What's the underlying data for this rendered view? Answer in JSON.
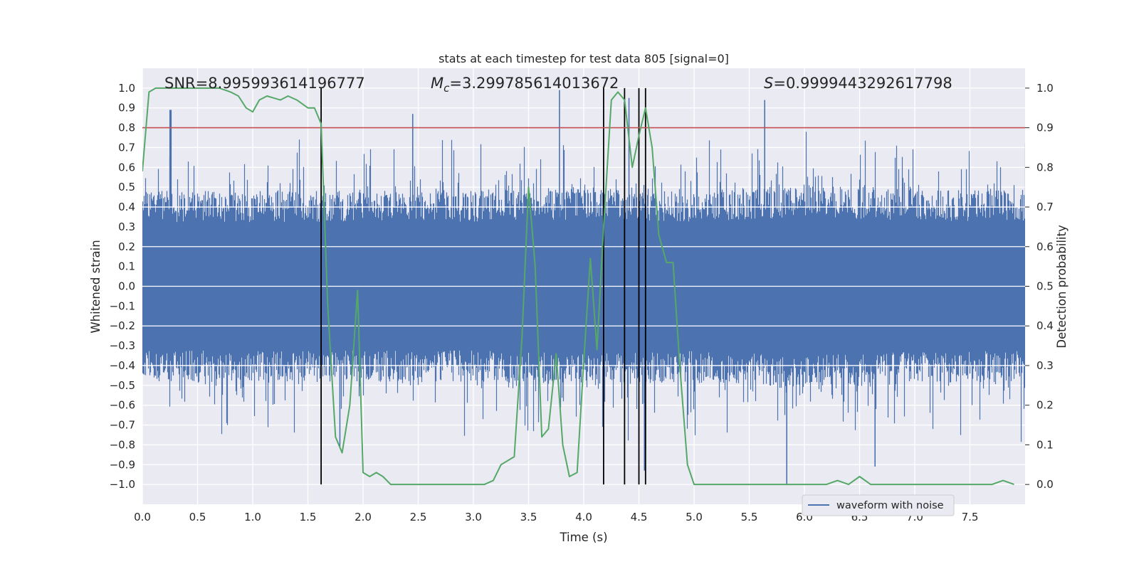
{
  "chart_data": {
    "type": "line",
    "title": "stats at each timestep for test data 805 [signal=0]",
    "xlabel": "Time (s)",
    "ylabel": "Whitened strain",
    "y2label": "Detection probability",
    "xlim": [
      0,
      8
    ],
    "ylim": [
      -1.1,
      1.1
    ],
    "y2lim": [
      -0.05,
      1.05
    ],
    "xticks": [
      "0.0",
      "0.5",
      "1.0",
      "1.5",
      "2.0",
      "2.5",
      "3.0",
      "3.5",
      "4.0",
      "4.5",
      "5.0",
      "5.5",
      "6.0",
      "6.5",
      "7.0",
      "7.5"
    ],
    "yticks": [
      "1.0",
      "0.9",
      "0.8",
      "0.7",
      "0.6",
      "0.5",
      "0.4",
      "0.3",
      "0.2",
      "0.1",
      "0.0",
      "-0.1",
      "-0.2",
      "-0.3",
      "-0.4",
      "-0.5",
      "-0.6",
      "-0.7",
      "-0.8",
      "-0.9",
      "-1.0"
    ],
    "y2ticks": [
      "1.0",
      "0.9",
      "0.8",
      "0.7",
      "0.6",
      "0.5",
      "0.4",
      "0.3",
      "0.2",
      "0.1",
      "0.0"
    ],
    "annotations": {
      "snr": "SNR=8.995993614196777",
      "mc_symbol": "M",
      "mc_sub": "c",
      "mc_value": "=3.299785614013672",
      "s_symbol": "S",
      "s_value": "=0.9999443292617798"
    },
    "legend": {
      "label": "waveform with noise",
      "placement": "lower-right"
    },
    "grid": true,
    "threshold": {
      "y2": 0.9,
      "color": "#c44e52"
    },
    "event_lines_x": [
      1.62,
      4.18,
      4.37,
      4.5,
      4.56
    ],
    "colors": {
      "waveform": "#4c72b0",
      "probability": "#55a868",
      "threshold": "#c44e52",
      "event": "#000000",
      "axes_bg": "#eaeaf2"
    },
    "series": [
      {
        "name": "waveform with noise",
        "kind": "noise",
        "color": "#4c72b0",
        "envelope_x": [
          0.0,
          1.0,
          2.0,
          3.0,
          4.0,
          5.0,
          6.0,
          7.0,
          8.0
        ],
        "envelope_upper": [
          0.45,
          0.45,
          0.45,
          0.45,
          0.47,
          0.45,
          0.48,
          0.46,
          0.45
        ],
        "envelope_lower": [
          -0.45,
          -0.45,
          -0.45,
          -0.45,
          -0.47,
          -0.45,
          -0.48,
          -0.46,
          -0.45
        ],
        "peaks_x": [
          0.25,
          0.26,
          1.79,
          2.45,
          3.78,
          4.41,
          4.55,
          4.56,
          5.64,
          5.84,
          6.64
        ],
        "peaks_y": [
          0.89,
          0.89,
          -0.81,
          0.87,
          0.99,
          0.95,
          -0.93,
          -0.83,
          0.94,
          -1.0,
          -0.91
        ]
      },
      {
        "name": "",
        "kind": "probability",
        "axis": "y2",
        "color": "#55a868",
        "x": [
          0.0,
          0.06,
          0.12,
          0.2,
          0.3,
          0.4,
          0.5,
          0.6,
          0.7,
          0.8,
          0.87,
          0.94,
          1.0,
          1.06,
          1.13,
          1.25,
          1.32,
          1.4,
          1.5,
          1.56,
          1.62,
          1.68,
          1.75,
          1.81,
          1.88,
          1.95,
          2.0,
          2.06,
          2.12,
          2.18,
          2.25,
          2.4,
          2.6,
          2.8,
          3.0,
          3.1,
          3.18,
          3.25,
          3.37,
          3.44,
          3.5,
          3.56,
          3.62,
          3.68,
          3.75,
          3.81,
          3.87,
          3.94,
          4.0,
          4.06,
          4.12,
          4.18,
          4.25,
          4.31,
          4.37,
          4.44,
          4.5,
          4.56,
          4.62,
          4.68,
          4.75,
          4.81,
          4.87,
          4.94,
          5.0,
          5.2,
          5.5,
          5.8,
          6.0,
          6.2,
          6.3,
          6.4,
          6.5,
          6.6,
          6.8,
          7.0,
          7.3,
          7.5,
          7.7,
          7.8,
          7.9
        ],
        "y": [
          0.79,
          0.99,
          1.0,
          1.0,
          1.0,
          1.0,
          1.0,
          1.0,
          1.0,
          0.99,
          0.98,
          0.95,
          0.94,
          0.97,
          0.98,
          0.97,
          0.98,
          0.97,
          0.95,
          0.95,
          0.91,
          0.45,
          0.12,
          0.08,
          0.2,
          0.49,
          0.03,
          0.02,
          0.03,
          0.02,
          0.0,
          0.0,
          0.0,
          0.0,
          0.0,
          0.0,
          0.01,
          0.05,
          0.07,
          0.37,
          0.75,
          0.55,
          0.12,
          0.14,
          0.33,
          0.1,
          0.02,
          0.03,
          0.31,
          0.57,
          0.34,
          0.65,
          0.97,
          0.99,
          0.97,
          0.8,
          0.88,
          0.95,
          0.85,
          0.63,
          0.56,
          0.56,
          0.3,
          0.05,
          0.0,
          0.0,
          0.0,
          0.0,
          0.0,
          0.0,
          0.01,
          0.0,
          0.02,
          0.0,
          0.0,
          0.0,
          0.0,
          0.0,
          0.0,
          0.01,
          0.0
        ]
      }
    ]
  }
}
